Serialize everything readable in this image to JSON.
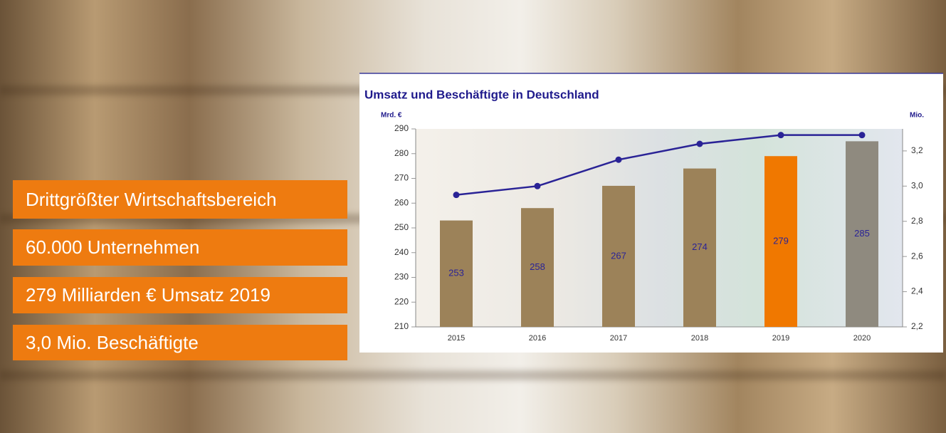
{
  "highlights": [
    "Drittgrößter Wirtschaftsbereich",
    "60.000 Unternehmen",
    "279 Milliarden € Umsatz  2019",
    "3,0 Mio. Beschäftigte"
  ],
  "chart_data": {
    "type": "bar-line",
    "title": "Umsatz und Beschäftigte in Deutschland",
    "y_label": "Mrd. €",
    "y2_label": "Mio.",
    "categories": [
      "2015",
      "2016",
      "2017",
      "2018",
      "2019",
      "2020"
    ],
    "series": [
      {
        "type": "bar",
        "colors": [
          "#9c8259",
          "#9c8259",
          "#9c8259",
          "#9c8259",
          "#f07800",
          "#8f8a7f"
        ],
        "values": [
          253,
          258,
          267,
          274,
          279,
          285
        ]
      },
      {
        "type": "line",
        "color": "#2a2396",
        "axis": "y2",
        "values": [
          2.95,
          3.0,
          3.15,
          3.24,
          3.29,
          3.29
        ]
      }
    ],
    "ylim": [
      210,
      290
    ],
    "yticks": [
      210,
      220,
      230,
      240,
      250,
      260,
      270,
      280,
      290
    ],
    "y2lim": [
      2.2,
      3.325
    ],
    "y2ticks": [
      {
        "value": 2.2,
        "label": "2,2"
      },
      {
        "value": 2.4,
        "label": "2,4"
      },
      {
        "value": 2.6,
        "label": "2,6"
      },
      {
        "value": 2.8,
        "label": "2,8"
      },
      {
        "value": 3.0,
        "label": "3,0"
      },
      {
        "value": 3.2,
        "label": "3,2"
      }
    ]
  }
}
